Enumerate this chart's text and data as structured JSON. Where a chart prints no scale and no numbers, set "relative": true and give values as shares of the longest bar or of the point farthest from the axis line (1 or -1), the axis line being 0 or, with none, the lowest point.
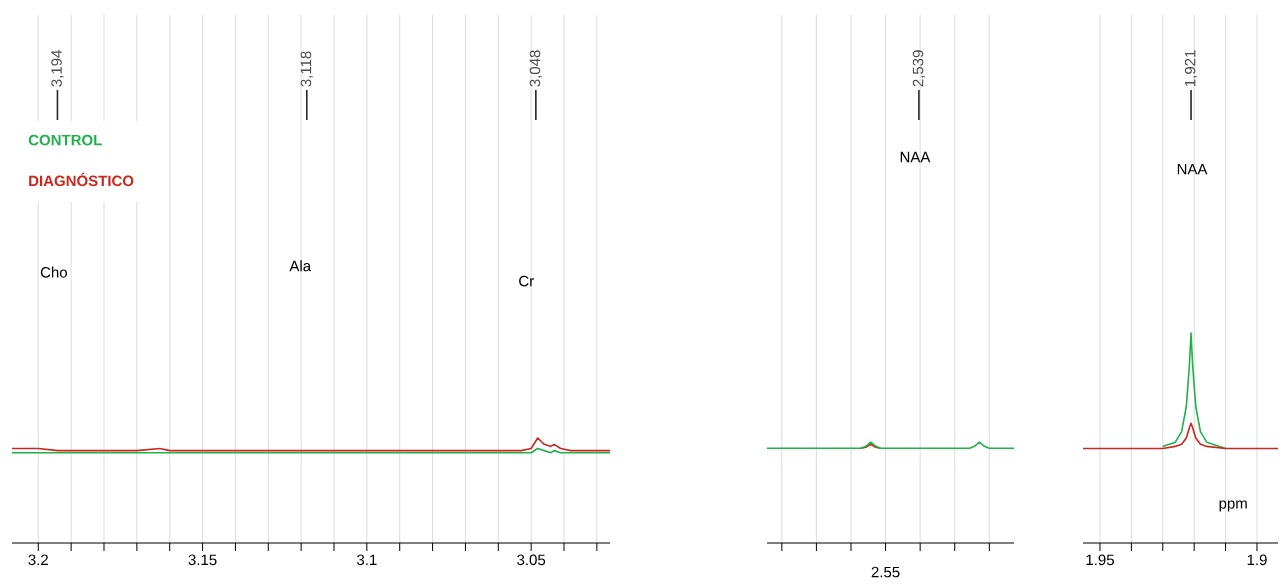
{
  "chart_data": [
    {
      "type": "line",
      "relative": true,
      "xlim": [
        3.208,
        3.026
      ],
      "xticks": [
        3.2,
        {
          "value": 3.19,
          "label": null
        },
        {
          "value": 3.18,
          "label": null
        },
        {
          "value": 3.17,
          "label": null
        },
        {
          "value": 3.16,
          "label": null
        },
        3.15,
        {
          "value": 3.14,
          "label": null
        },
        {
          "value": 3.13,
          "label": null
        },
        {
          "value": 3.12,
          "label": null
        },
        {
          "value": 3.11,
          "label": null
        },
        3.1,
        {
          "value": 3.09,
          "label": null
        },
        {
          "value": 3.08,
          "label": null
        },
        {
          "value": 3.07,
          "label": null
        },
        {
          "value": 3.06,
          "label": null
        },
        3.05,
        {
          "value": 3.04,
          "label": null
        },
        {
          "value": 3.03,
          "label": null
        }
      ],
      "x": [
        3.208,
        3.2,
        3.194,
        3.19,
        3.18,
        3.17,
        3.163,
        3.16,
        3.15,
        3.14,
        3.13,
        3.118,
        3.11,
        3.1,
        3.09,
        3.08,
        3.07,
        3.06,
        3.053,
        3.05,
        3.048,
        3.046,
        3.044,
        3.043,
        3.041,
        3.038,
        3.03,
        3.026
      ],
      "series": [
        {
          "name": "CONTROL",
          "color": "#22b04a",
          "values": [
            0.86,
            0.86,
            0.86,
            0.86,
            0.86,
            0.86,
            0.86,
            0.86,
            0.86,
            0.86,
            0.86,
            0.86,
            0.86,
            0.86,
            0.86,
            0.86,
            0.86,
            0.86,
            0.86,
            0.86,
            0.9,
            0.88,
            0.86,
            0.88,
            0.86,
            0.86,
            0.86,
            0.86
          ]
        },
        {
          "name": "DIAGNÓSTICO",
          "color": "#c8281e",
          "values": [
            0.9,
            0.9,
            0.88,
            0.88,
            0.88,
            0.88,
            0.9,
            0.88,
            0.88,
            0.88,
            0.88,
            0.88,
            0.88,
            0.88,
            0.88,
            0.88,
            0.88,
            0.88,
            0.88,
            0.9,
            1.0,
            0.94,
            0.92,
            0.94,
            0.9,
            0.88,
            0.88,
            0.88
          ]
        }
      ],
      "annotations": [
        "3,194",
        "3,118",
        "3,048",
        "Cho",
        "Ala",
        "Cr"
      ],
      "legend": "top left",
      "grid": "x",
      "tick_labels": "x",
      "marker": "none",
      "line_style": "solid"
    },
    {
      "type": "line",
      "relative": true,
      "categories": [
        null,
        null,
        null,
        null,
        null,
        null,
        null,
        null,
        null,
        null,
        null,
        null,
        null,
        null,
        null,
        null,
        null,
        null,
        null,
        null,
        null,
        null,
        null,
        null,
        null,
        null,
        null,
        null,
        null,
        null,
        null,
        null,
        null,
        null,
        null,
        null,
        null,
        null,
        null,
        null,
        null,
        null,
        null,
        null,
        null,
        null,
        null,
        null,
        null,
        null,
        null
      ],
      "series": [
        {
          "color": "#c8281e",
          "values": [
            null,
            null,
            null,
            null,
            null,
            null,
            null,
            null,
            null,
            null,
            null,
            null,
            null,
            null,
            null,
            null,
            null,
            null,
            null,
            0.94,
            0.95,
            0.98,
            0.95,
            0.94,
            null,
            null,
            null,
            null,
            null,
            null,
            null,
            null,
            null,
            null,
            null,
            null,
            null,
            null,
            null,
            null,
            null,
            null,
            null,
            null,
            null,
            null,
            null,
            null,
            null,
            null,
            null
          ]
        },
        {
          "color": "#22b04a",
          "values": [
            0.94,
            0.94,
            0.94,
            0.94,
            0.94,
            0.94,
            0.94,
            0.94,
            0.94,
            0.94,
            0.94,
            0.94,
            0.94,
            0.94,
            0.94,
            0.94,
            0.94,
            0.94,
            0.94,
            0.94,
            0.96,
            1.0,
            0.96,
            0.94,
            0.94,
            0.94,
            0.94,
            0.94,
            0.94,
            0.94,
            0.94,
            0.94,
            0.94,
            0.94,
            0.94,
            0.94,
            0.94,
            0.94,
            0.94,
            0.94,
            0.94,
            0.94,
            0.96,
            1.0,
            0.96,
            0.94,
            0.94,
            0.94,
            0.94,
            0.94,
            0.94
          ]
        }
      ],
      "annotations": [
        "2,539",
        "NAA",
        "2.55"
      ],
      "grid": "x",
      "tick_labels": "x",
      "marker": "none",
      "line_style": "solid"
    },
    {
      "type": "line",
      "relative": true,
      "xlim": [
        1.9554,
        1.8933
      ],
      "xlabel": "ppm",
      "xticks": [
        1.95,
        {
          "value": 1.94,
          "label": null
        },
        {
          "value": 1.93,
          "label": null
        },
        {
          "value": 1.92,
          "label": null
        },
        {
          "value": 1.91,
          "label": null
        },
        1.9
      ],
      "x": [
        1.9554,
        1.94,
        1.93,
        1.926,
        1.924,
        1.9225,
        1.9215,
        1.921,
        1.9205,
        1.9195,
        1.918,
        1.916,
        1.91,
        1.9,
        1.8933
      ],
      "series": [
        {
          "color": "#22b04a",
          "values": [
            null,
            null,
            0.46,
            0.48,
            0.53,
            0.65,
            0.85,
            1.0,
            0.85,
            0.65,
            0.53,
            0.48,
            0.45,
            null,
            null
          ]
        },
        {
          "color": "#c8281e",
          "values": [
            0.45,
            0.45,
            0.45,
            0.46,
            0.47,
            0.5,
            0.55,
            0.57,
            0.55,
            0.5,
            0.47,
            0.46,
            0.45,
            0.45,
            0.45
          ]
        }
      ],
      "annotations": [
        "1,921",
        "NAA"
      ],
      "grid": "x",
      "tick_labels": "x",
      "marker": "none",
      "line_style": "solid"
    }
  ]
}
